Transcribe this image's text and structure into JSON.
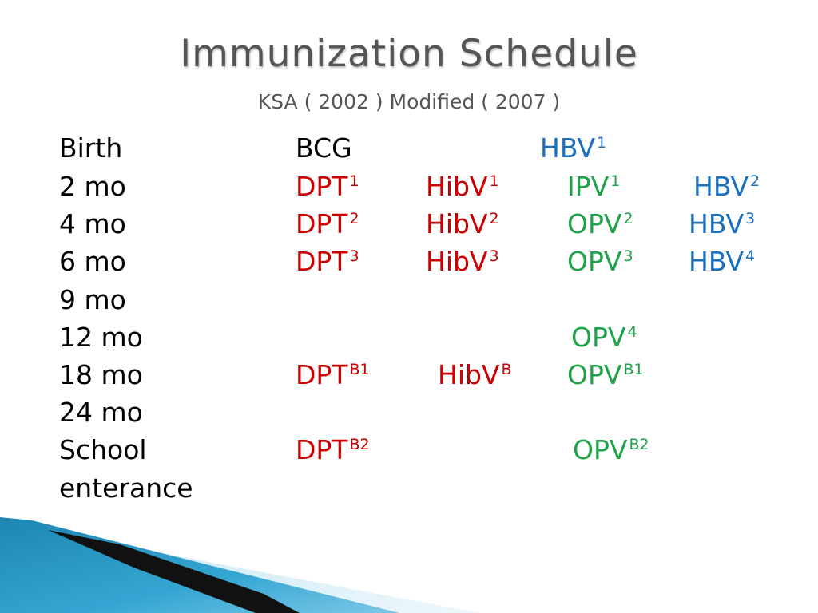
{
  "slide": {
    "title": "Immunization Schedule",
    "subtitle": "KSA ( 2002 ) Modified ( 2007 )"
  },
  "colors": {
    "title_text": "#555555",
    "dpt_hib": "#cc0000",
    "hbv": "#1a6fbf",
    "ipv_opv": "#1fa24a",
    "accent_blue": "#2a8fbf"
  },
  "schedule": [
    {
      "age": "Birth",
      "vaccines": [
        {
          "name": "BCG",
          "sup": "",
          "color": "black"
        },
        {
          "name": "HBV",
          "sup": "1",
          "color": "blue"
        }
      ]
    },
    {
      "age": "2 mo",
      "vaccines": [
        {
          "name": "DPT",
          "sup": "1",
          "color": "red"
        },
        {
          "name": "HibV",
          "sup": "1",
          "color": "red"
        },
        {
          "name": "IPV",
          "sup": "1",
          "color": "green"
        },
        {
          "name": "HBV",
          "sup": "2",
          "color": "blue"
        }
      ]
    },
    {
      "age": "4 mo",
      "vaccines": [
        {
          "name": "DPT",
          "sup": "2",
          "color": "red"
        },
        {
          "name": "HibV",
          "sup": "2",
          "color": "red"
        },
        {
          "name": "OPV",
          "sup": "2",
          "color": "green"
        },
        {
          "name": "HBV",
          "sup": "3",
          "color": "blue"
        }
      ]
    },
    {
      "age": "6 mo",
      "vaccines": [
        {
          "name": "DPT",
          "sup": "3",
          "color": "red"
        },
        {
          "name": "HibV",
          "sup": "3",
          "color": "red"
        },
        {
          "name": "OPV",
          "sup": "3",
          "color": "green"
        },
        {
          "name": "HBV",
          "sup": "4",
          "color": "blue"
        }
      ]
    },
    {
      "age": "9 mo",
      "vaccines": []
    },
    {
      "age": "12 mo",
      "vaccines": [
        {
          "name": "OPV",
          "sup": "4",
          "color": "green"
        }
      ]
    },
    {
      "age": "18 mo",
      "vaccines": [
        {
          "name": "DPT",
          "sup": "B1",
          "color": "red"
        },
        {
          "name": "HibV",
          "sup": "B",
          "color": "red"
        },
        {
          "name": "OPV",
          "sup": "B1",
          "color": "green"
        }
      ]
    },
    {
      "age": "24 mo",
      "vaccines": []
    },
    {
      "age": "School",
      "vaccines": [
        {
          "name": "DPT",
          "sup": "B2",
          "color": "red"
        },
        {
          "name": "OPV",
          "sup": "B2",
          "color": "green"
        }
      ]
    },
    {
      "age": "enterance",
      "vaccines": []
    }
  ]
}
